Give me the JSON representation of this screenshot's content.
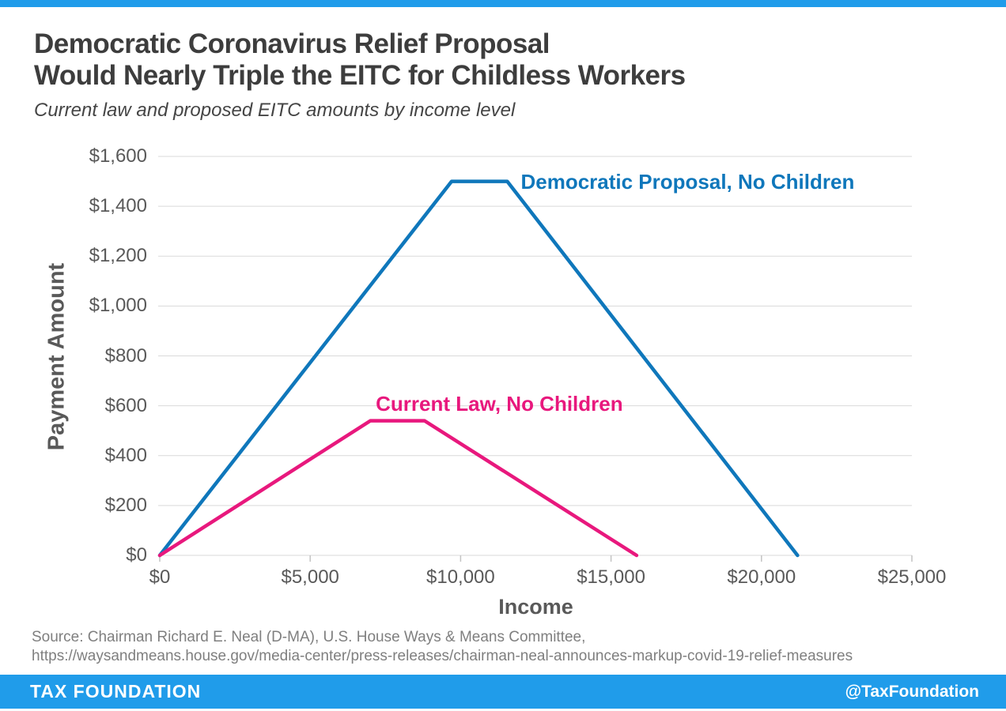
{
  "page": {
    "title_line1": "Democratic Coronavirus Relief Proposal",
    "title_line2": "Would Nearly Triple the EITC for Childless Workers",
    "subtitle": "Current law and proposed EITC amounts by income level",
    "source_line1": "Source: Chairman Richard E. Neal (D-MA), U.S. House Ways & Means Committee,",
    "source_line2": "https://waysandmeans.house.gov/media-center/press-releases/chairman-neal-announces-markup-covid-19-relief-measures"
  },
  "footer": {
    "brand": "TAX FOUNDATION",
    "handle": "@TaxFoundation"
  },
  "colors": {
    "accent_bar": "#209cea",
    "grid": "#d9d9d9",
    "tick": "#c3c3c3",
    "proposal_blue": "#0f77bb",
    "current_law_pink": "#e8187d"
  },
  "chart_data": {
    "type": "line",
    "title": "Democratic Coronavirus Relief Proposal Would Nearly Triple the EITC for Childless Workers",
    "subtitle": "Current law and proposed EITC amounts by income level",
    "xlabel": "Income",
    "ylabel": "Payment Amount",
    "xlim": [
      0,
      25000
    ],
    "ylim": [
      0,
      1600
    ],
    "grid": "horizontal",
    "legend": "inline-labels",
    "x_ticks": [
      0,
      5000,
      10000,
      15000,
      20000,
      25000
    ],
    "x_tick_labels": [
      "$0",
      "$5,000",
      "$10,000",
      "$15,000",
      "$20,000",
      "$25,000"
    ],
    "y_ticks": [
      0,
      200,
      400,
      600,
      800,
      1000,
      1200,
      1400,
      1600
    ],
    "y_tick_labels": [
      "$0",
      "$200",
      "$400",
      "$600",
      "$800",
      "$1,000",
      "$1,200",
      "$1,400",
      "$1,600"
    ],
    "series": [
      {
        "name": "Democratic Proposal, No Children",
        "color": "#0f77bb",
        "points": [
          [
            0,
            0
          ],
          [
            9700,
            1500
          ],
          [
            11550,
            1500
          ],
          [
            21200,
            0
          ]
        ],
        "label_anchor": {
          "x": 12000,
          "y": 1495
        }
      },
      {
        "name": "Current Law, No Children",
        "color": "#e8187d",
        "points": [
          [
            0,
            0
          ],
          [
            7000,
            540
          ],
          [
            8800,
            540
          ],
          [
            15850,
            0
          ]
        ],
        "label_anchor": {
          "x": 7180,
          "y": 605
        }
      }
    ]
  }
}
